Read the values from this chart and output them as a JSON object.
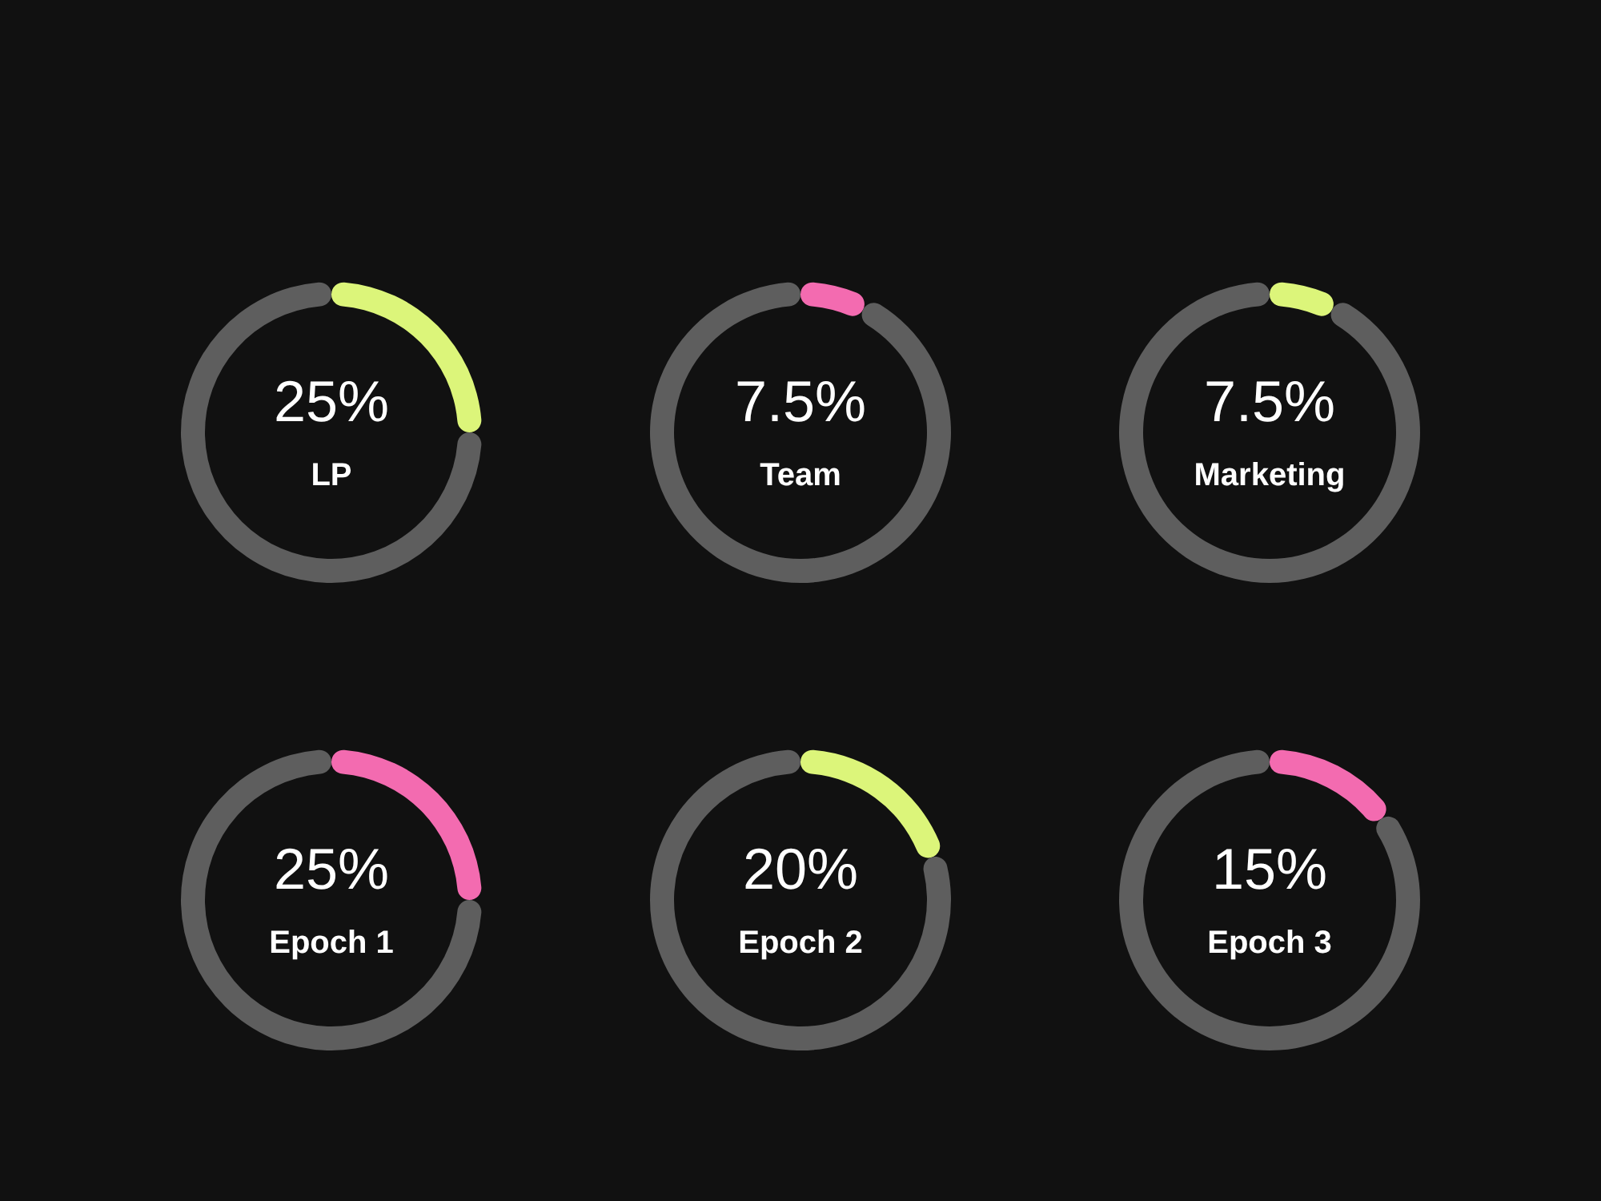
{
  "chart_data": [
    {
      "type": "donut",
      "categories": [
        "LP",
        null
      ],
      "values": [
        25,
        75
      ],
      "colors": [
        "#dcf57a",
        "#5e5e5e"
      ],
      "value_labels": [
        "25%",
        null
      ]
    },
    {
      "type": "donut",
      "categories": [
        "Team",
        null
      ],
      "values": [
        7.5,
        92.5
      ],
      "colors": [
        "#f36bb0",
        "#5e5e5e"
      ],
      "value_labels": [
        "7.5%",
        null
      ]
    },
    {
      "type": "donut",
      "categories": [
        "Marketing",
        null
      ],
      "values": [
        7.5,
        92.5
      ],
      "colors": [
        "#dcf57a",
        "#5e5e5e"
      ],
      "value_labels": [
        "7.5%",
        null
      ]
    },
    {
      "type": "donut",
      "categories": [
        "Epoch 1",
        null
      ],
      "values": [
        25,
        75
      ],
      "colors": [
        "#f36bb0",
        "#5e5e5e"
      ],
      "value_labels": [
        "25%",
        null
      ]
    },
    {
      "type": "donut",
      "categories": [
        "Epoch 2",
        null
      ],
      "values": [
        20,
        80
      ],
      "colors": [
        "#dcf57a",
        "#5e5e5e"
      ],
      "value_labels": [
        "20%",
        null
      ]
    },
    {
      "type": "donut",
      "categories": [
        "Epoch 3",
        null
      ],
      "values": [
        15,
        85
      ],
      "colors": [
        "#f36bb0",
        "#5e5e5e"
      ],
      "value_labels": [
        "15%",
        null
      ]
    }
  ]
}
